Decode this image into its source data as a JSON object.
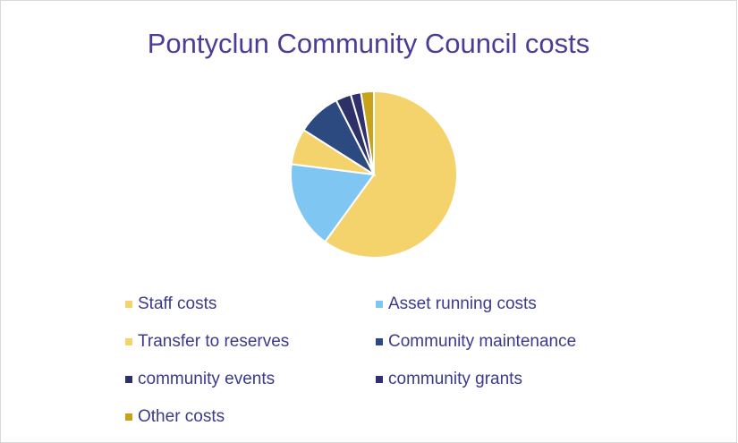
{
  "chart_data": {
    "type": "pie",
    "title": "Pontyclun Community Council costs",
    "categories": [
      "Staff costs",
      "Asset running costs",
      "Transfer to reserves",
      "Community maintenance",
      "community events",
      "community grants",
      "Other costs"
    ],
    "values": [
      60,
      17,
      7,
      8.5,
      3,
      2,
      2.5
    ],
    "colors": [
      "#f4d36d",
      "#80c6f2",
      "#f4d36d",
      "#2d4a80",
      "#2e3168",
      "#302f70",
      "#c9a21b"
    ]
  }
}
